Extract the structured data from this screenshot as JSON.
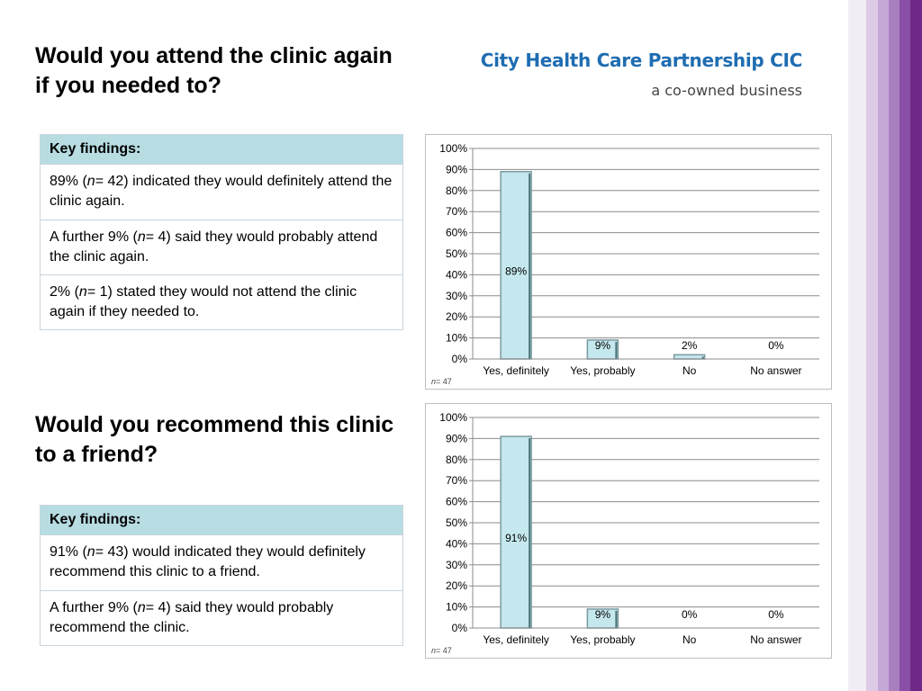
{
  "header": {
    "brand_name": "City Health Care Partnership CIC",
    "brand_tagline": "a co-owned business"
  },
  "section1": {
    "title": "Would you attend the clinic again if you needed to?",
    "findings": {
      "header": "Key findings:",
      "rows": [
        {
          "pre": "89% (",
          "n_label": "n",
          "post": "= 42)  indicated they would definitely attend the clinic again."
        },
        {
          "pre": "A further 9% (",
          "n_label": "n",
          "post": "= 4) said they would probably attend the clinic again."
        },
        {
          "pre": "2% (",
          "n_label": "n",
          "post": "= 1) stated they would not attend the clinic again if they needed to."
        }
      ]
    }
  },
  "section2": {
    "title": "Would you recommend this clinic to a friend?",
    "findings": {
      "header": "Key findings:",
      "rows": [
        {
          "pre": "91% (",
          "n_label": "n",
          "post": "= 43)  would indicated they would definitely recommend this clinic to a friend."
        },
        {
          "pre": "A further 9% (",
          "n_label": "n",
          "post": "= 4) said they would probably recommend the clinic."
        }
      ]
    }
  },
  "colors": {
    "bar_fill": "#c5e8ee",
    "bar_stroke": "#7a9aa0",
    "grid": "#8c8c8c",
    "table_header": "#b7dde3",
    "brand_blue": "#1f6db2",
    "stripes": [
      "#f2edf5",
      "#ddcbe6",
      "#c6a8d6",
      "#aa7fc0",
      "#8a4fa6",
      "#6e2887"
    ]
  },
  "chart_data": [
    {
      "type": "bar",
      "categories": [
        "Yes, definitely",
        "Yes, probably",
        "No",
        "No answer"
      ],
      "values": [
        89,
        9,
        2,
        0
      ],
      "data_labels": [
        "89%",
        "9%",
        "2%",
        "0%"
      ],
      "ylim": [
        0,
        100
      ],
      "yticks": [
        "0%",
        "10%",
        "20%",
        "30%",
        "40%",
        "50%",
        "60%",
        "70%",
        "80%",
        "90%",
        "100%"
      ],
      "grid": true,
      "footnote_n": "n",
      "footnote_value": "= 47"
    },
    {
      "type": "bar",
      "categories": [
        "Yes, definitely",
        "Yes, probably",
        "No",
        "No answer"
      ],
      "values": [
        91,
        9,
        0,
        0
      ],
      "data_labels": [
        "91%",
        "9%",
        "0%",
        "0%"
      ],
      "ylim": [
        0,
        100
      ],
      "yticks": [
        "0%",
        "10%",
        "20%",
        "30%",
        "40%",
        "50%",
        "60%",
        "70%",
        "80%",
        "90%",
        "100%"
      ],
      "grid": true,
      "footnote_n": "n",
      "footnote_value": "= 47"
    }
  ]
}
